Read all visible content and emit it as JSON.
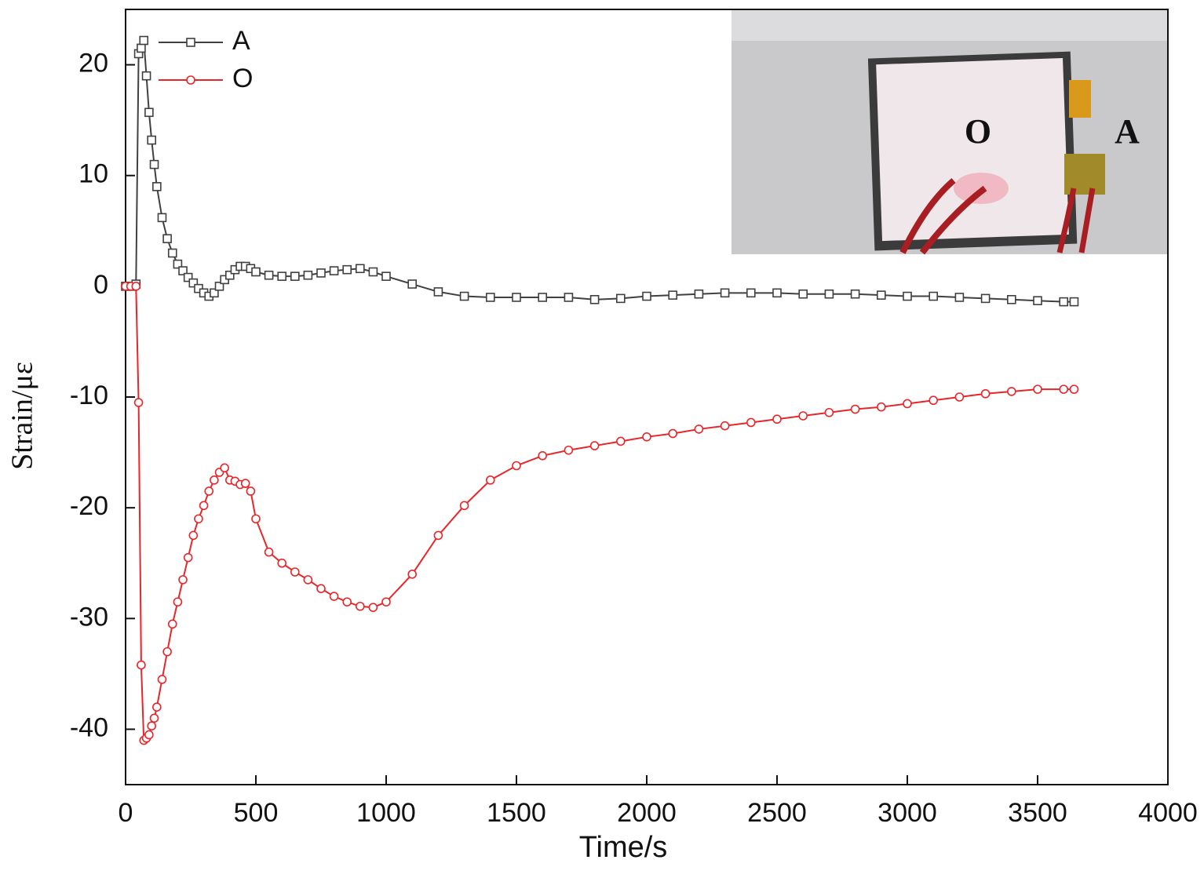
{
  "chart_data": {
    "type": "line",
    "xlabel": "Time/s",
    "ylabel": "Strain/με",
    "x": [
      0,
      20,
      40,
      50,
      60,
      70,
      80,
      90,
      100,
      110,
      120,
      140,
      160,
      180,
      200,
      220,
      240,
      260,
      280,
      300,
      320,
      340,
      360,
      380,
      400,
      420,
      440,
      460,
      480,
      500,
      550,
      600,
      650,
      700,
      750,
      800,
      850,
      900,
      950,
      1000,
      1100,
      1200,
      1300,
      1400,
      1500,
      1600,
      1700,
      1800,
      1900,
      2000,
      2100,
      2200,
      2300,
      2400,
      2500,
      2600,
      2700,
      2800,
      2900,
      3000,
      3100,
      3200,
      3300,
      3400,
      3500,
      3600,
      3640
    ],
    "series": [
      {
        "name": "A",
        "color": "#404040",
        "marker": "square",
        "values": [
          0,
          0,
          0.2,
          21,
          21.5,
          22.2,
          19,
          15.7,
          13.2,
          11,
          9,
          6.2,
          4.3,
          3,
          2,
          1.4,
          0.8,
          0.3,
          -0.2,
          -0.6,
          -0.9,
          -0.6,
          0,
          0.6,
          1.0,
          1.5,
          1.8,
          1.8,
          1.6,
          1.3,
          1.0,
          0.9,
          0.9,
          1.0,
          1.2,
          1.4,
          1.5,
          1.6,
          1.3,
          0.9,
          0.2,
          -0.5,
          -0.9,
          -1.0,
          -1.0,
          -1.0,
          -1.0,
          -1.2,
          -1.1,
          -0.9,
          -0.8,
          -0.7,
          -0.6,
          -0.6,
          -0.6,
          -0.7,
          -0.7,
          -0.7,
          -0.8,
          -0.9,
          -0.9,
          -1.0,
          -1.1,
          -1.2,
          -1.3,
          -1.4,
          -1.4
        ]
      },
      {
        "name": "O",
        "color": "#e8262a",
        "marker": "circle",
        "values": [
          0,
          0,
          0,
          -10.5,
          -34.2,
          -41,
          -40.8,
          -40.5,
          -39.7,
          -39,
          -38,
          -35.5,
          -33,
          -30.5,
          -28.5,
          -26.5,
          -24.5,
          -22.5,
          -21,
          -19.8,
          -18.5,
          -17.5,
          -16.8,
          -16.4,
          -17.5,
          -17.6,
          -17.9,
          -17.8,
          -18.5,
          -21,
          -24,
          -25,
          -25.8,
          -26.5,
          -27.3,
          -28,
          -28.5,
          -28.9,
          -29,
          -28.5,
          -26,
          -22.5,
          -19.8,
          -17.5,
          -16.2,
          -15.3,
          -14.8,
          -14.4,
          -14,
          -13.6,
          -13.3,
          -12.9,
          -12.6,
          -12.3,
          -12,
          -11.7,
          -11.4,
          -11.1,
          -10.9,
          -10.6,
          -10.3,
          -10,
          -9.7,
          -9.5,
          -9.3,
          -9.3,
          -9.3
        ]
      }
    ],
    "xlim": [
      0,
      4000
    ],
    "xticks": [
      0,
      500,
      1000,
      1500,
      2000,
      2500,
      3000,
      3500,
      4000
    ],
    "ylim": [
      -45,
      25
    ],
    "yticks": [
      -40,
      -30,
      -20,
      -10,
      0,
      10,
      20
    ],
    "legend": "upper left",
    "annotations": [
      "O",
      "A"
    ]
  }
}
